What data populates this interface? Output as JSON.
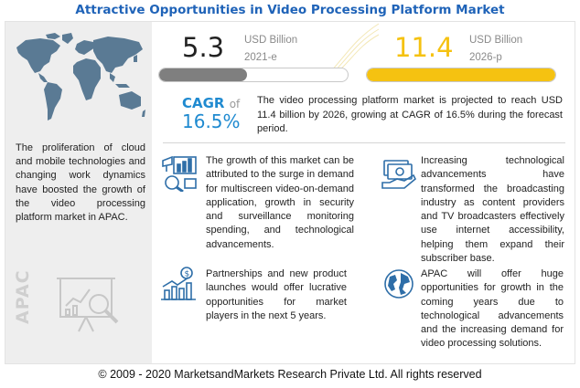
{
  "title": "Attractive Opportunities in Video Processing Platform Market",
  "left_panel": {
    "description": "The proliferation of cloud and mobile technologies and changing work dynamics have boosted the growth of the video processing platform market in APAC.",
    "region_label": "APAC",
    "map_icon": "world-map-icon",
    "analysis_icon": "chart-magnifier-icon"
  },
  "market_2021": {
    "value": "5.3",
    "unit": "USD Billion",
    "year": "2021-e",
    "bar_fraction": 0.465,
    "color": "#7f7f7f"
  },
  "market_2026": {
    "value": "11.4",
    "unit": "USD Billion",
    "year": "2026-p",
    "bar_fraction": 1.0,
    "color": "#f5c211"
  },
  "cagr": {
    "label": "CAGR",
    "of": "of",
    "value": "16.5%",
    "text": "The video processing platform market is projected to reach USD 11.4 billion by 2026, growing at CAGR of 16.5% during the forecast period."
  },
  "points": [
    {
      "icon": "surveillance-chart-icon",
      "text": "The growth of this market can be attributed to the surge in demand for multiscreen video-on-demand application, growth in security and surveillance monitoring spending, and technological advancements."
    },
    {
      "icon": "money-broadcast-icon",
      "text": "Increasing technological advancements have transformed the broadcasting industry as content providers and TV broadcasters effectively use internet accessibility, helping them expand their subscriber base."
    },
    {
      "icon": "growth-bars-icon",
      "text": "Partnerships and new product launches would offer lucrative opportunities for market players in the next 5 years."
    },
    {
      "icon": "globe-icon",
      "text": "APAC will offer huge opportunities for growth in the coming years due to technological advancements and the increasing demand for video processing solutions."
    }
  ],
  "colors": {
    "title_blue": "#1f63b8",
    "cagr_blue": "#1f8ad0",
    "yellow": "#f5c211",
    "gray": "#7f7f7f",
    "icon_blue": "#2e6ea8"
  },
  "copyright": "© 2009 - 2020 MarketsandMarkets Research Private Ltd. All rights reserved"
}
